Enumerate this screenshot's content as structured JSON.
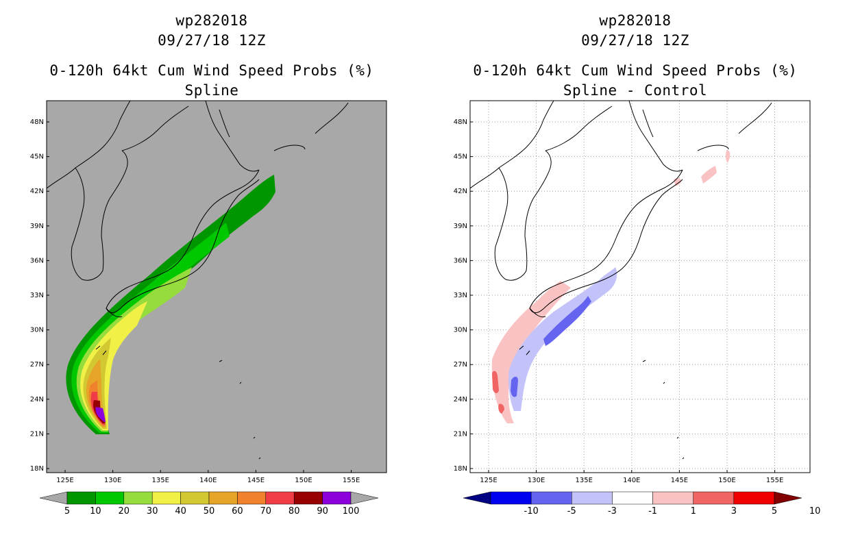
{
  "left_panel": {
    "storm_id": "wp282018",
    "datetime": "09/27/18 12Z",
    "product": "0-120h 64kt Cum Wind Speed Probs (%)",
    "subtitle": "Spline",
    "background_color": "#a8a8a8",
    "colorbar": {
      "labels": [
        "5",
        "10",
        "20",
        "30",
        "40",
        "50",
        "60",
        "70",
        "80",
        "90",
        "100"
      ],
      "colors": [
        "#a8a8a8",
        "#009600",
        "#00c800",
        "#96dc3c",
        "#f0f046",
        "#d2c832",
        "#e6a528",
        "#f0822d",
        "#f03c46",
        "#960000",
        "#8c00dc",
        "#a8a8a8"
      ]
    }
  },
  "right_panel": {
    "storm_id": "wp282018",
    "datetime": "09/27/18 12Z",
    "product": "0-120h 64kt Cum Wind Speed Probs (%)",
    "subtitle": "Spline - Control",
    "background_color": "#ffffff",
    "colorbar": {
      "labels": [
        "-10",
        "-5",
        "-3",
        "-1",
        "1",
        "3",
        "5",
        "10"
      ],
      "colors": [
        "#000082",
        "#0000f0",
        "#6464f0",
        "#c3c3fa",
        "#ffffff",
        "#fac3c3",
        "#f06464",
        "#f00000",
        "#820000"
      ]
    }
  },
  "map_axes": {
    "lat_ticks": [
      "18N",
      "21N",
      "24N",
      "27N",
      "30N",
      "33N",
      "36N",
      "39N",
      "42N",
      "45N",
      "48N"
    ],
    "lon_ticks": [
      "125E",
      "130E",
      "135E",
      "140E",
      "145E",
      "150E",
      "155E"
    ]
  },
  "icons": [
    "coastline-map"
  ]
}
